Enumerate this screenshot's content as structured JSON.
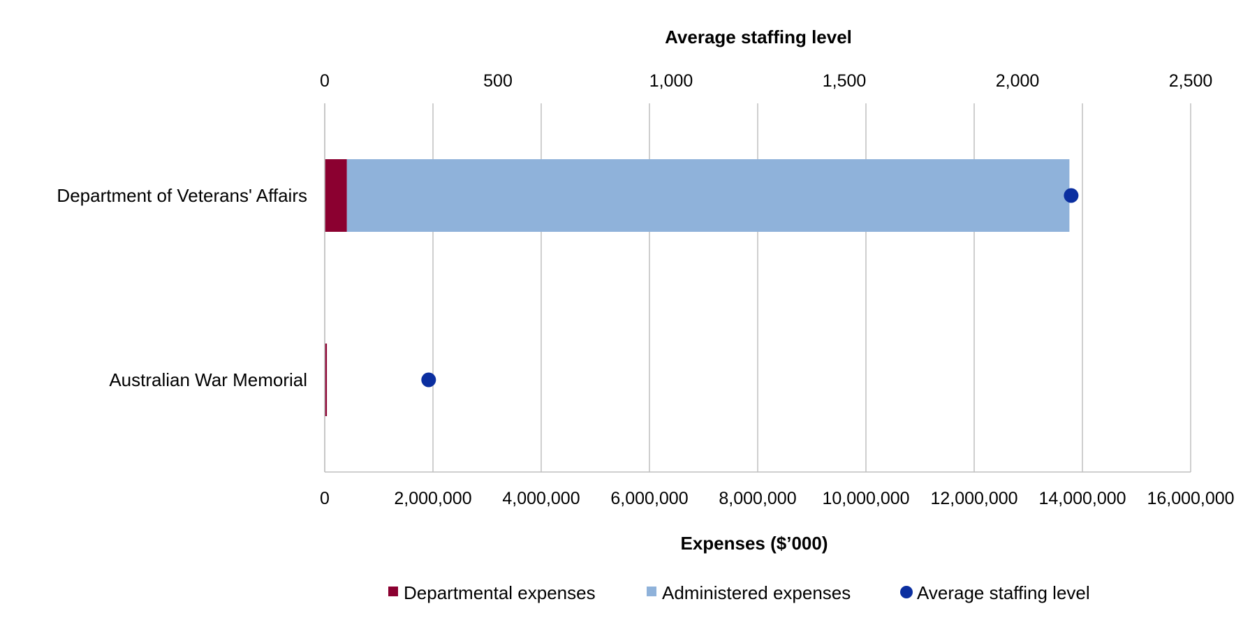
{
  "chart_data": {
    "type": "bar",
    "orientation": "horizontal",
    "stacked": true,
    "categories": [
      "Department of  Veterans' Affairs",
      "Australian War Memorial"
    ],
    "series": [
      {
        "name": "Departmental expenses",
        "kind": "bar",
        "axis": "bottom",
        "color": "#8b0030",
        "values": [
          410000,
          40000
        ]
      },
      {
        "name": "Administered expenses",
        "kind": "bar",
        "axis": "bottom",
        "color": "#8fb2da",
        "values": [
          13350000,
          0
        ]
      },
      {
        "name": "Average staffing level",
        "kind": "scatter",
        "axis": "top",
        "color": "#0b2fa0",
        "values": [
          2155,
          300
        ]
      }
    ],
    "xlabel": "Expenses ($’000)",
    "x2label": "Average staffing level",
    "xlim": [
      0,
      16000000
    ],
    "x2lim": [
      0,
      2500
    ],
    "xticks": [
      0,
      2000000,
      4000000,
      6000000,
      8000000,
      10000000,
      12000000,
      14000000,
      16000000
    ],
    "xtick_labels": [
      "0",
      "2,000,000",
      "4,000,000",
      "6,000,000",
      "8,000,000",
      "10,000,000",
      "12,000,000",
      "14,000,000",
      "16,000,000"
    ],
    "x2ticks": [
      0,
      500,
      1000,
      1500,
      2000,
      2500
    ],
    "x2tick_labels": [
      "0",
      "500",
      "1,000",
      "1,500",
      "2,000",
      "2,500"
    ],
    "grid": true,
    "legend_position": "bottom"
  }
}
